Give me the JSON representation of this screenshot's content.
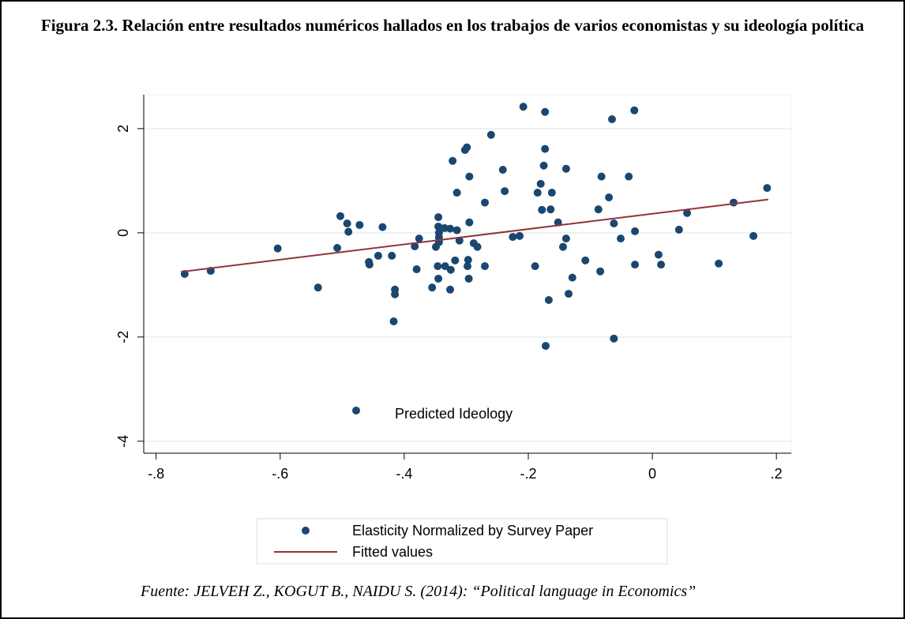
{
  "chart_data": {
    "type": "scatter",
    "title": "Figura 2.3. Relación entre resultados numéricos hallados en los trabajos de varios economistas y su ideología política",
    "annotation": "Predicted Ideology",
    "source": "Fuente: JELVEH Z., KOGUT B., NAIDU S. (2014): “Political language in Economics”",
    "xlim": [
      -0.82,
      0.224
    ],
    "ylim": [
      -4.23,
      2.65
    ],
    "xticks": [
      {
        "value": -0.8,
        "label": "-.8"
      },
      {
        "value": -0.6,
        "label": "-.6"
      },
      {
        "value": -0.4,
        "label": "-.4"
      },
      {
        "value": -0.2,
        "label": "-.2"
      },
      0,
      {
        "value": 0.2,
        "label": ".2"
      }
    ],
    "yticks": [
      2,
      0,
      -2,
      -4
    ],
    "grid": true,
    "series": [
      {
        "name": "Elasticity Normalized by Survey Paper",
        "type": "scatter",
        "color": "#1a476f",
        "x": [
          -0.754,
          -0.712,
          -0.604,
          -0.539,
          -0.508,
          -0.503,
          -0.492,
          -0.49,
          -0.472,
          -0.457,
          -0.456,
          -0.442,
          -0.435,
          -0.42,
          -0.417,
          -0.415,
          -0.415,
          -0.383,
          -0.38,
          -0.376,
          -0.355,
          -0.349,
          -0.345,
          -0.345,
          -0.344,
          -0.344,
          -0.344,
          -0.346,
          -0.345,
          -0.326,
          -0.335,
          -0.334,
          -0.326,
          -0.325,
          -0.322,
          -0.318,
          -0.315,
          -0.315,
          -0.311,
          -0.302,
          -0.299,
          -0.298,
          -0.297,
          -0.296,
          -0.295,
          -0.295,
          -0.288,
          -0.282,
          -0.27,
          -0.27,
          -0.26,
          -0.241,
          -0.238,
          -0.225,
          -0.214,
          -0.208,
          -0.189,
          -0.185,
          -0.18,
          -0.178,
          -0.175,
          -0.173,
          -0.173,
          -0.172,
          -0.167,
          -0.164,
          -0.162,
          -0.152,
          -0.144,
          -0.139,
          -0.139,
          -0.135,
          -0.129,
          -0.108,
          -0.087,
          -0.084,
          -0.082,
          -0.07,
          -0.065,
          -0.062,
          -0.062,
          -0.051,
          -0.038,
          -0.029,
          -0.028,
          -0.028,
          0.01,
          0.014,
          0.043,
          0.056,
          0.107,
          0.131,
          0.163,
          0.185
        ],
        "values": [
          -0.79,
          -0.73,
          -0.3,
          -1.05,
          -0.29,
          0.32,
          0.18,
          0.02,
          0.15,
          -0.56,
          -0.61,
          -0.44,
          0.11,
          -0.44,
          -1.7,
          -1.09,
          -1.18,
          -0.26,
          -0.7,
          -0.11,
          -1.05,
          -0.27,
          0.3,
          0.12,
          0.0,
          -0.09,
          -0.18,
          -0.64,
          -0.88,
          -1.09,
          0.09,
          -0.64,
          0.08,
          -0.71,
          1.38,
          -0.53,
          0.05,
          0.77,
          -0.15,
          1.59,
          1.64,
          -0.64,
          -0.52,
          -0.88,
          0.2,
          1.08,
          -0.2,
          -0.27,
          0.58,
          -0.64,
          1.88,
          1.21,
          0.8,
          -0.08,
          -0.06,
          2.42,
          -0.64,
          0.77,
          0.94,
          0.44,
          1.29,
          2.32,
          1.61,
          -2.17,
          -1.29,
          0.45,
          0.77,
          0.2,
          -0.27,
          -0.11,
          1.23,
          -1.17,
          -0.86,
          -0.53,
          0.45,
          -0.74,
          1.08,
          0.68,
          2.18,
          -2.03,
          0.18,
          -0.11,
          1.08,
          2.35,
          0.03,
          -0.61,
          -0.42,
          -0.61,
          0.06,
          0.38,
          -0.59,
          0.58,
          -0.06,
          0.86
        ]
      },
      {
        "name": "Fitted values",
        "type": "line",
        "color": "#90353b",
        "x": [
          -0.76,
          0.187
        ],
        "values": [
          -0.75,
          0.64
        ]
      }
    ]
  }
}
